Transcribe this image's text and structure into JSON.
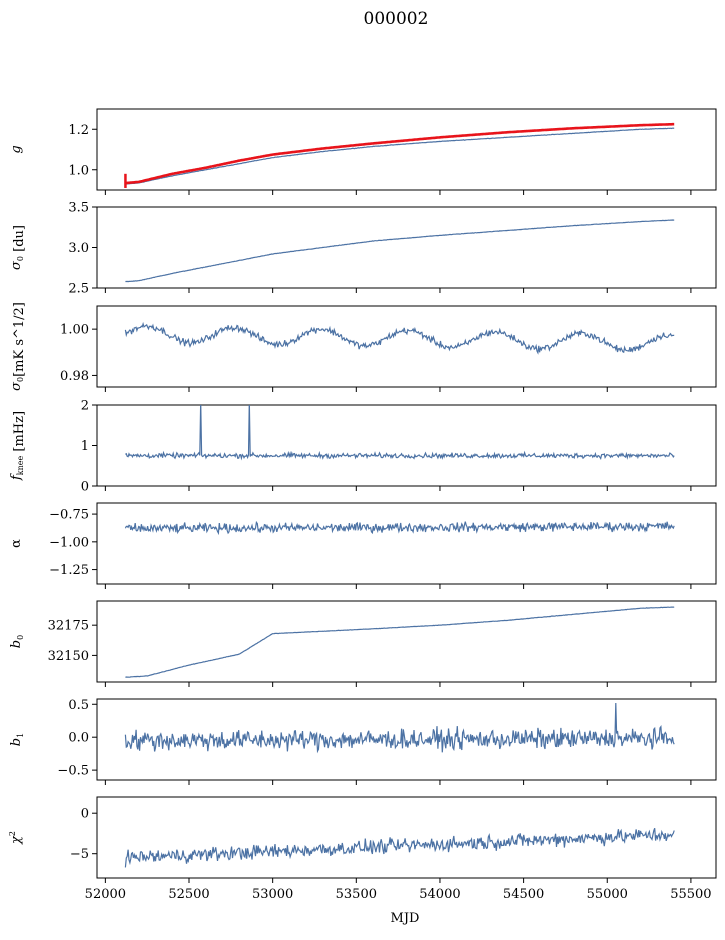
{
  "title": "000002",
  "chart_data": {
    "type": "line",
    "title": "000002",
    "xlabel": "MJD",
    "xlim": [
      51950,
      55650
    ],
    "xticks": [
      52000,
      52500,
      53000,
      53500,
      54000,
      54500,
      55000,
      55500
    ],
    "x_start": 52120,
    "x_end": 55400,
    "series_color": "#4c72a4",
    "overlay_color": "#e8141b",
    "panels": [
      {
        "id": "g",
        "ylabel": "g",
        "ylabel_italic": true,
        "ylim": [
          0.9,
          1.3
        ],
        "yticks": [
          1.0,
          1.2
        ],
        "ytick_labels": [
          "1.0",
          "1.2"
        ],
        "kind": "smooth",
        "x": [
          52130,
          52200,
          52400,
          52600,
          52800,
          53000,
          53300,
          53600,
          54000,
          54400,
          54800,
          55200,
          55400
        ],
        "y": [
          0.93,
          0.935,
          0.97,
          1.0,
          1.03,
          1.06,
          1.09,
          1.115,
          1.14,
          1.16,
          1.18,
          1.2,
          1.205
        ],
        "overlay": {
          "name": "fit",
          "x": [
            52130,
            52200,
            52400,
            52600,
            52800,
            53000,
            53300,
            53600,
            54000,
            54400,
            54800,
            55200,
            55400
          ],
          "y": [
            0.935,
            0.94,
            0.98,
            1.01,
            1.045,
            1.075,
            1.105,
            1.13,
            1.16,
            1.185,
            1.205,
            1.22,
            1.225
          ]
        },
        "error_bar": {
          "x": 52120,
          "y": 0.945,
          "low": 0.91,
          "high": 0.98
        }
      },
      {
        "id": "sigma0-du",
        "ylabel": "σ0 [du]",
        "ylim": [
          2.5,
          3.5
        ],
        "yticks": [
          2.5,
          3.0,
          3.5
        ],
        "ytick_labels": [
          "2.5",
          "3.0",
          "3.5"
        ],
        "kind": "smooth",
        "x": [
          52130,
          52200,
          52400,
          52700,
          53000,
          53300,
          53600,
          54000,
          54400,
          54800,
          55200,
          55400
        ],
        "y": [
          2.58,
          2.59,
          2.68,
          2.8,
          2.92,
          3.0,
          3.08,
          3.15,
          3.21,
          3.27,
          3.32,
          3.34
        ]
      },
      {
        "id": "sigma0-mks",
        "ylabel": "σ0[mK s^1/2]",
        "ylim": [
          0.975,
          1.01
        ],
        "yticks": [
          0.98,
          1.0
        ],
        "ytick_labels": [
          "0.98",
          "1.00"
        ],
        "kind": "wave",
        "baseline": [
          0.998,
          0.994
        ],
        "amplitude": 0.0035,
        "period": 520,
        "noise": 0.0012
      },
      {
        "id": "fknee",
        "ylabel": "fknee [mHz]",
        "ylim": [
          0,
          2
        ],
        "yticks": [
          0,
          1,
          2
        ],
        "ytick_labels": [
          "0",
          "1",
          "2"
        ],
        "kind": "noise",
        "baseline": [
          0.75,
          0.75
        ],
        "noise": 0.05,
        "spikes": [
          {
            "x": 52570,
            "y": 2.1
          },
          {
            "x": 52860,
            "y": 2.1
          }
        ]
      },
      {
        "id": "alpha",
        "ylabel": "α",
        "ylim": [
          -1.38,
          -0.65
        ],
        "yticks": [
          -1.25,
          -1.0,
          -0.75
        ],
        "ytick_labels": [
          "−1.25",
          "−1.00",
          "−0.75"
        ],
        "kind": "noise",
        "baseline": [
          -0.88,
          -0.86
        ],
        "noise": 0.035
      },
      {
        "id": "b0",
        "ylabel": "b0",
        "ylim": [
          32128,
          32195
        ],
        "yticks": [
          32150,
          32175
        ],
        "ytick_labels": [
          "32150",
          "32175"
        ],
        "kind": "smooth",
        "x": [
          52130,
          52250,
          52500,
          52800,
          53000,
          53300,
          53600,
          54000,
          54400,
          54800,
          55200,
          55400
        ],
        "y": [
          32132,
          32133,
          32142,
          32151,
          32168,
          32170,
          32172,
          32175,
          32179,
          32184,
          32189,
          32190
        ]
      },
      {
        "id": "b1",
        "ylabel": "b1",
        "ylim": [
          -0.65,
          0.58
        ],
        "yticks": [
          -0.5,
          0.0,
          0.5
        ],
        "ytick_labels": [
          "−0.5",
          "0.0",
          "0.5"
        ],
        "kind": "noise",
        "baseline": [
          -0.05,
          -0.02
        ],
        "noise": 0.13,
        "spikes": [
          {
            "x": 55050,
            "y": 0.52
          }
        ]
      },
      {
        "id": "chi2",
        "ylabel": "χ2",
        "ylim": [
          -8,
          2
        ],
        "yticks": [
          -5,
          0
        ],
        "ytick_labels": [
          "−5",
          "0"
        ],
        "kind": "noise",
        "baseline": [
          -5.5,
          -2.6
        ],
        "noise": 0.75
      }
    ]
  }
}
